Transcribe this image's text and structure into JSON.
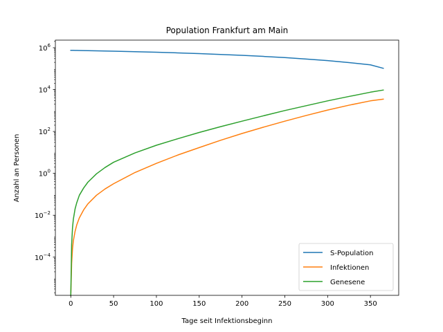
{
  "chart_data": {
    "type": "line",
    "title": "Population Frankfurt am Main",
    "xlabel": "Tage seit Infektionsbeginn",
    "ylabel": "Anzahl an Personen",
    "yscale": "log",
    "xlim": [
      -18,
      383
    ],
    "ylim": [
      1.5e-06,
      2300000.0
    ],
    "x_ticks": [
      0,
      50,
      100,
      150,
      200,
      250,
      300,
      350
    ],
    "y_ticks": [
      {
        "value": 0.0001,
        "base": "10",
        "exp": "−4"
      },
      {
        "value": 0.01,
        "base": "10",
        "exp": "−2"
      },
      {
        "value": 1,
        "base": "10",
        "exp": "0"
      },
      {
        "value": 100,
        "base": "10",
        "exp": "2"
      },
      {
        "value": 10000,
        "base": "10",
        "exp": "4"
      },
      {
        "value": 1000000,
        "base": "10",
        "exp": "6"
      }
    ],
    "grid": false,
    "legend_position": "lower right",
    "x": [
      0,
      1,
      2,
      3,
      5,
      7,
      10,
      15,
      20,
      30,
      40,
      50,
      75,
      100,
      125,
      150,
      175,
      200,
      225,
      250,
      275,
      300,
      325,
      350,
      365
    ],
    "series": [
      {
        "name": "S-Population",
        "color": "#1f77b4",
        "values": [
          750000,
          749000,
          748000,
          747000,
          744000,
          741000,
          737000,
          730000,
          723000,
          709000,
          695000,
          680000,
          644000,
          606000,
          565000,
          522000,
          477000,
          431000,
          384000,
          336000,
          288000,
          241000,
          195000,
          152000,
          104000
        ]
      },
      {
        "name": "Infektionen",
        "color": "#ff7f0e",
        "values": [
          1.5e-06,
          5e-05,
          0.00025,
          0.0006,
          0.0017,
          0.0035,
          0.0075,
          0.018,
          0.035,
          0.09,
          0.18,
          0.32,
          1.1,
          3.0,
          7.5,
          17,
          38,
          80,
          160,
          310,
          580,
          1050,
          1800,
          2900,
          3500
        ]
      },
      {
        "name": "Genesene",
        "color": "#2ca02c",
        "values": [
          1.5e-06,
          0.0004,
          0.0025,
          0.0065,
          0.02,
          0.04,
          0.09,
          0.2,
          0.38,
          0.95,
          1.9,
          3.4,
          9.5,
          22,
          45,
          90,
          170,
          310,
          560,
          1000,
          1700,
          2900,
          4700,
          7500,
          9500
        ]
      }
    ]
  }
}
